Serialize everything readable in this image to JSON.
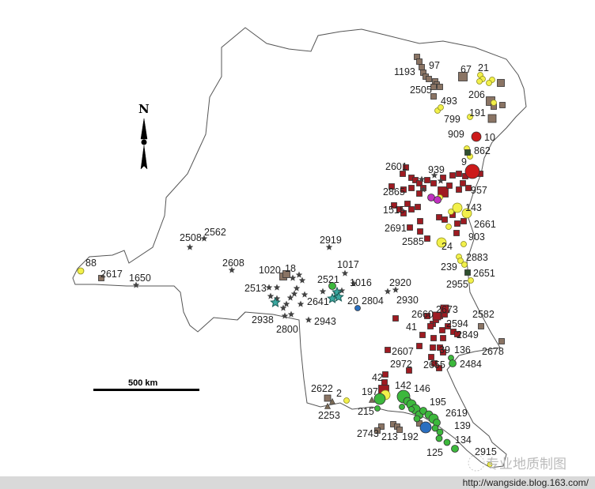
{
  "map": {
    "north_label": "N",
    "scale_label": "500 km",
    "point_labels": [
      "1193",
      "97",
      "67",
      "21",
      "2505",
      "493",
      "206",
      "799",
      "191",
      "909",
      "10",
      "862",
      "9",
      "2601",
      "939",
      "2865",
      "957",
      "1515",
      "143",
      "2691",
      "2661",
      "903",
      "2585",
      "24",
      "2883",
      "239",
      "2651",
      "2955",
      "2920",
      "2930",
      "2508",
      "2562",
      "2919",
      "2608",
      "1017",
      "1020",
      "18",
      "2521",
      "1016",
      "2513",
      "2641",
      "20",
      "2804",
      "2938",
      "2943",
      "2800",
      "88",
      "2617",
      "1650",
      "2660",
      "2673",
      "2582",
      "41",
      "2594",
      "2849",
      "2607",
      "39",
      "136",
      "2678",
      "2972",
      "2655",
      "2484",
      "42",
      "2622",
      "2",
      "142",
      "146",
      "197",
      "195",
      "215",
      "2253",
      "2619",
      "139",
      "2743",
      "213",
      "192",
      "134",
      "125",
      "2915"
    ],
    "symbol_colors": {
      "brown_square": "#8a7464",
      "dark_red_square": "#9e1b22",
      "red_circle": "#cc1a1a",
      "yellow_circle": "#f2f04a",
      "green_circle": "#3cb83c",
      "blue_circle": "#2a6fc0",
      "magenta_circle": "#c030c0",
      "star": "#444444",
      "teal_star": "#3aa8a0",
      "triangle": "#7a6a55"
    }
  },
  "watermark": {
    "text": "专业地质制图"
  },
  "footer": {
    "url": "http://wangside.blog.163.com/"
  }
}
